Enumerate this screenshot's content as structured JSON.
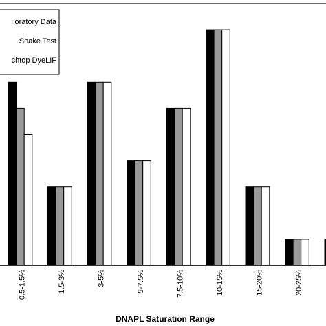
{
  "chart_data": {
    "type": "bar",
    "x_label": "DNAPL Saturation Range",
    "categories": [
      "0.5-1.5%",
      "1.5-3%",
      "3-5%",
      "5-7.5%",
      "7.5-10%",
      "10-15%",
      "15-20%",
      "20-25%",
      null
    ],
    "series": [
      {
        "name": "oratory Data",
        "color": "#000000",
        "values": [
          7,
          3,
          7,
          4,
          6,
          9,
          3,
          1,
          1
        ]
      },
      {
        "name": "Shake Test",
        "color": "#999999",
        "values": [
          6,
          3,
          7,
          4,
          6,
          9,
          3,
          1,
          null
        ]
      },
      {
        "name": "chtop DyeLIF",
        "color": "#ffffff",
        "values": [
          5,
          3,
          7,
          4,
          6,
          9,
          3,
          1,
          null
        ]
      }
    ],
    "ylim": [
      0,
      10
    ],
    "legend": "top-left"
  }
}
